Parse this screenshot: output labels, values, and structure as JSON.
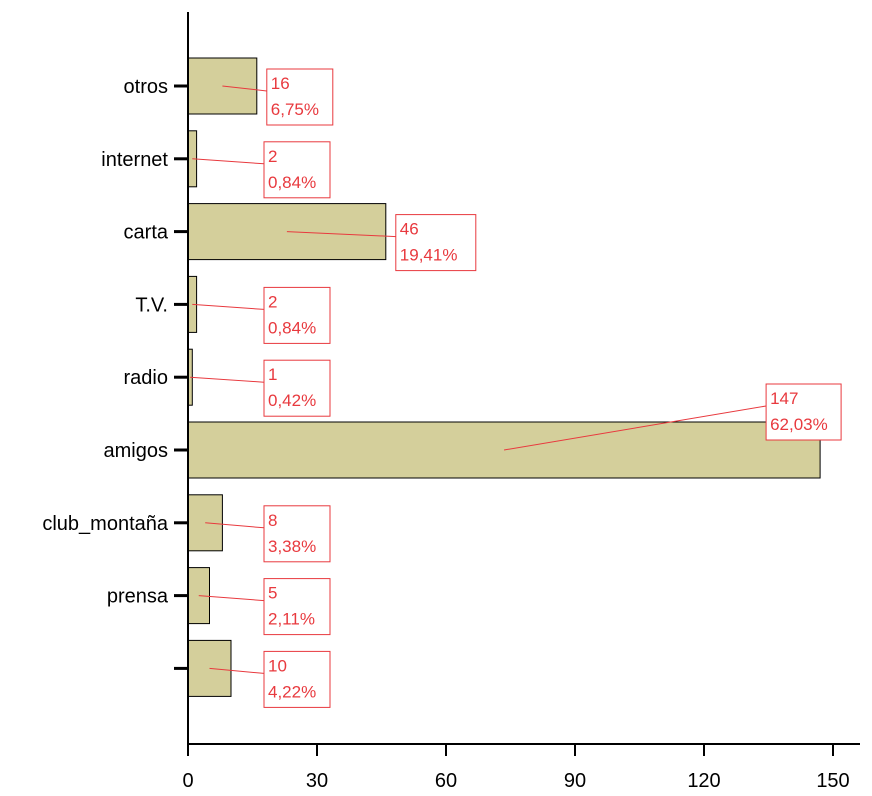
{
  "chart_data": {
    "type": "bar",
    "orientation": "horizontal",
    "categories": [
      "otros",
      "internet",
      "carta",
      "T.V.",
      "radio",
      "amigos",
      "club_montaña",
      "prensa",
      ""
    ],
    "values": [
      16,
      2,
      46,
      2,
      1,
      147,
      8,
      5,
      10
    ],
    "percent_labels": [
      "6,75%",
      "0,84%",
      "19,41%",
      "0,84%",
      "0,42%",
      "62,03%",
      "3,38%",
      "2,11%",
      "4,22%"
    ],
    "count_labels": [
      "16",
      "2",
      "46",
      "2",
      "1",
      "147",
      "8",
      "5",
      "10"
    ],
    "x_ticks": [
      "0",
      "30",
      "60",
      "90",
      "120",
      "150"
    ],
    "xlim": [
      0,
      150
    ],
    "xlabel": "",
    "ylabel": "",
    "title": "",
    "grid": false,
    "bar_color": "#d4cf9b",
    "label_color": "#e8393e"
  }
}
